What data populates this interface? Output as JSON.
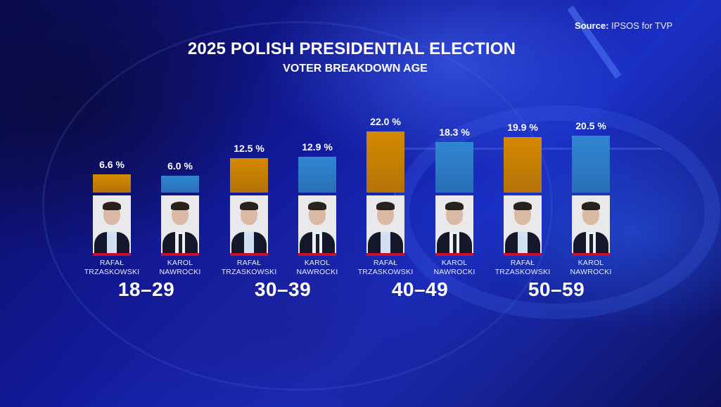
{
  "source": {
    "label": "Source:",
    "value": "IPSOS for TVP"
  },
  "header": {
    "title": "2025 POLISH PRESIDENTIAL ELECTION",
    "subtitle": "VOTER BREAKDOWN AGE"
  },
  "colors": {
    "trzaskowski": "#c98006",
    "nawrocki": "#2d7cc6",
    "name_stripe": "#c8102e",
    "background": "#1420a0"
  },
  "candidates": {
    "trzaskowski": {
      "first": "RAFAŁ",
      "last": "TRZASKOWSKI"
    },
    "nawrocki": {
      "first": "KAROL",
      "last": "NAWROCKI"
    }
  },
  "groups": [
    {
      "age": "18–29",
      "bars": [
        {
          "pct_label": "6.6 %"
        },
        {
          "pct_label": "6.0 %"
        }
      ]
    },
    {
      "age": "30–39",
      "bars": [
        {
          "pct_label": "12.5 %"
        },
        {
          "pct_label": "12.9 %"
        }
      ]
    },
    {
      "age": "40–49",
      "bars": [
        {
          "pct_label": "22.0 %"
        },
        {
          "pct_label": "18.3 %"
        }
      ]
    },
    {
      "age": "50–59",
      "bars": [
        {
          "pct_label": "19.9 %"
        },
        {
          "pct_label": "20.5 %"
        }
      ]
    }
  ],
  "chart_data": {
    "type": "bar",
    "title": "2025 POLISH PRESIDENTIAL ELECTION",
    "subtitle": "VOTER BREAKDOWN AGE",
    "categories": [
      "18–29",
      "30–39",
      "40–49",
      "50–59"
    ],
    "series": [
      {
        "name": "RAFAŁ TRZASKOWSKI",
        "color": "#c98006",
        "values": [
          6.6,
          12.5,
          22.0,
          19.9
        ]
      },
      {
        "name": "KAROL NAWROCKI",
        "color": "#2d7cc6",
        "values": [
          6.0,
          12.9,
          18.3,
          20.5
        ]
      }
    ],
    "xlabel": "",
    "ylabel": "",
    "unit": "%",
    "grid": false,
    "legend": "candidate names and photos under each bar",
    "source": "Source: IPSOS for TVP"
  }
}
